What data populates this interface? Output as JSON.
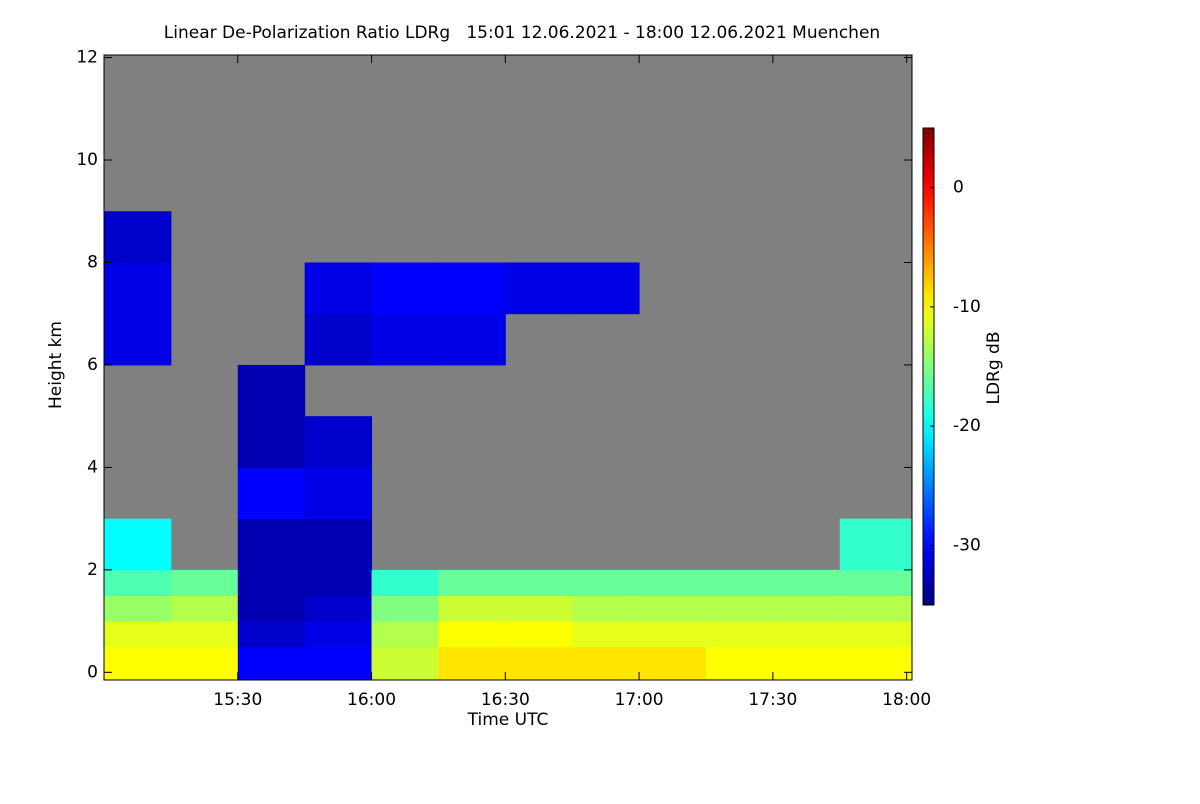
{
  "chart_data": {
    "type": "heatmap",
    "title": "Linear De-Polarization Ratio LDRg   15:01 12.06.2021 - 18:00 12.06.2021 Muenchen",
    "x_label": "Time UTC",
    "y_label": "Height km",
    "colorbar_label": "LDRg dB",
    "colormap": "jet",
    "missing_color": "#808080",
    "xlim": [
      15.0,
      18.02
    ],
    "xticks": [
      {
        "value": 15.5,
        "label": "15:30"
      },
      {
        "value": 16.0,
        "label": "16:00"
      },
      {
        "value": 16.5,
        "label": "16:30"
      },
      {
        "value": 17.0,
        "label": "17:00"
      },
      {
        "value": 17.5,
        "label": "17:30"
      },
      {
        "value": 18.0,
        "label": "18:00"
      }
    ],
    "ylim": [
      -0.15,
      12.05
    ],
    "yticks": [
      0,
      2,
      4,
      6,
      8,
      10,
      12
    ],
    "clim": [
      -35,
      5
    ],
    "cticks": [
      0,
      -10,
      -20,
      -30
    ],
    "x": [
      15.0,
      15.25,
      15.5,
      15.75,
      16.0,
      16.25,
      16.5,
      16.75,
      17.0,
      17.25,
      17.5,
      17.75,
      18.02
    ],
    "y": [
      -0.15,
      0.5,
      1,
      1.5,
      2,
      3,
      4,
      5,
      6,
      7,
      8,
      9,
      12.05
    ],
    "z": [
      [
        -10,
        -10,
        -30,
        -30,
        -12,
        -9,
        -9,
        -9,
        -9,
        -10,
        -10,
        -10
      ],
      [
        -11,
        -11,
        -32,
        -31,
        -13,
        -10,
        -10,
        -11,
        -11,
        -11,
        -11,
        -11
      ],
      [
        -14,
        -13,
        -33,
        -32,
        -15,
        -12,
        -12,
        -13,
        -13,
        -13,
        -13,
        -13
      ],
      [
        -17,
        -16,
        -33,
        -33,
        -18,
        -16,
        -16,
        -16,
        -16,
        -16,
        -16,
        -16
      ],
      [
        -20,
        null,
        -33,
        -33,
        null,
        null,
        null,
        null,
        null,
        null,
        null,
        -18
      ],
      [
        null,
        null,
        -30,
        -31,
        null,
        null,
        null,
        null,
        null,
        null,
        null,
        null
      ],
      [
        null,
        null,
        -33,
        -32,
        null,
        null,
        null,
        null,
        null,
        null,
        null,
        null
      ],
      [
        null,
        null,
        -33,
        null,
        null,
        null,
        null,
        null,
        null,
        null,
        null,
        null
      ],
      [
        -31,
        null,
        null,
        -32,
        -31,
        -31,
        null,
        null,
        null,
        null,
        null,
        null
      ],
      [
        -31,
        null,
        null,
        -31,
        -30,
        -30,
        -31,
        -31,
        null,
        null,
        null,
        null
      ],
      [
        -32,
        null,
        null,
        null,
        null,
        null,
        null,
        null,
        null,
        null,
        null,
        null
      ],
      [
        null,
        null,
        null,
        null,
        null,
        null,
        null,
        null,
        null,
        null,
        null,
        null
      ]
    ]
  }
}
